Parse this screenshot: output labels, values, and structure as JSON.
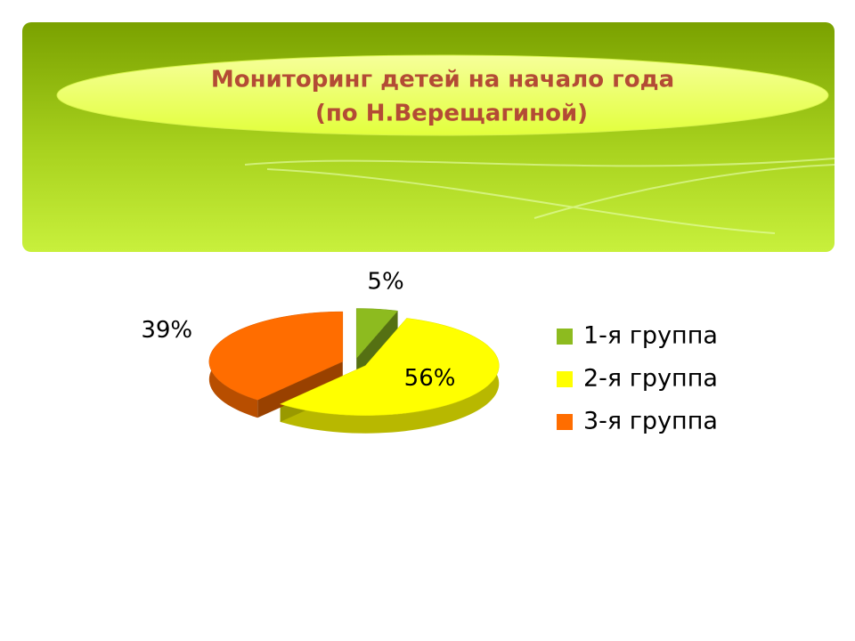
{
  "chart_data": {
    "type": "pie",
    "title": [
      "Мониторинг детей на начало года",
      "(по Н.Верещагиной)"
    ],
    "categories": [
      "1-я группа",
      "2-я группа",
      "3-я группа"
    ],
    "values": [
      5,
      56,
      39
    ],
    "value_labels": [
      "5%",
      "56%",
      "39%"
    ],
    "colors": [
      "#8dbb1f",
      "#ffff00",
      "#ff6d00"
    ],
    "legend": "right"
  }
}
